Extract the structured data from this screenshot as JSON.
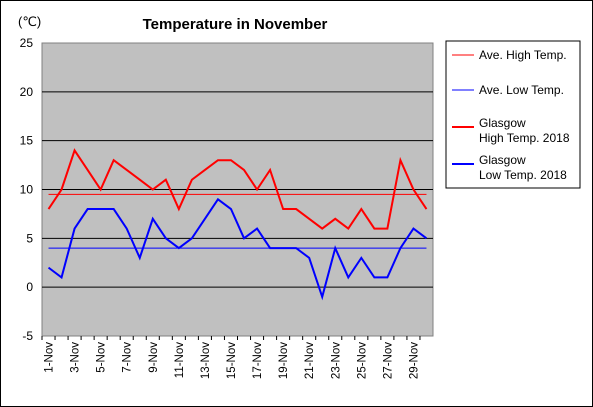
{
  "chart_data": {
    "type": "line",
    "title": "Temperature in November",
    "unit_label": "(℃)",
    "ylim": [
      -5,
      25
    ],
    "yticks": [
      -5,
      0,
      5,
      10,
      15,
      20,
      25
    ],
    "grid": true,
    "legend_position": "right",
    "colors": {
      "plot_bg": "#c0c0c0",
      "high": "#ff0000",
      "low": "#0000ff"
    },
    "categories": [
      "1-Nov",
      "2-Nov",
      "3-Nov",
      "4-Nov",
      "5-Nov",
      "6-Nov",
      "7-Nov",
      "8-Nov",
      "9-Nov",
      "10-Nov",
      "11-Nov",
      "12-Nov",
      "13-Nov",
      "14-Nov",
      "15-Nov",
      "16-Nov",
      "17-Nov",
      "18-Nov",
      "19-Nov",
      "20-Nov",
      "21-Nov",
      "22-Nov",
      "23-Nov",
      "24-Nov",
      "25-Nov",
      "26-Nov",
      "27-Nov",
      "28-Nov",
      "29-Nov",
      "30-Nov"
    ],
    "tick_labels": [
      "1-Nov",
      "3-Nov",
      "5-Nov",
      "7-Nov",
      "9-Nov",
      "11-Nov",
      "13-Nov",
      "15-Nov",
      "17-Nov",
      "19-Nov",
      "21-Nov",
      "23-Nov",
      "25-Nov",
      "27-Nov",
      "29-Nov"
    ],
    "series": [
      {
        "name": "Ave. High Temp.",
        "legend": [
          "Ave. High Temp."
        ],
        "style": "thin",
        "color": "#ff0000",
        "values": [
          9.5,
          9.5,
          9.5,
          9.5,
          9.5,
          9.5,
          9.5,
          9.5,
          9.5,
          9.5,
          9.5,
          9.5,
          9.5,
          9.5,
          9.5,
          9.5,
          9.5,
          9.5,
          9.5,
          9.5,
          9.5,
          9.5,
          9.5,
          9.5,
          9.5,
          9.5,
          9.5,
          9.5,
          9.5,
          9.5
        ]
      },
      {
        "name": "Ave. Low Temp.",
        "legend": [
          "Ave. Low Temp."
        ],
        "style": "thin",
        "color": "#0000ff",
        "values": [
          4,
          4,
          4,
          4,
          4,
          4,
          4,
          4,
          4,
          4,
          4,
          4,
          4,
          4,
          4,
          4,
          4,
          4,
          4,
          4,
          4,
          4,
          4,
          4,
          4,
          4,
          4,
          4,
          4,
          4
        ]
      },
      {
        "name": "Glasgow High Temp. 2018",
        "legend": [
          "Glasgow",
          "High Temp. 2018"
        ],
        "style": "thick",
        "color": "#ff0000",
        "values": [
          8,
          10,
          14,
          12,
          10,
          13,
          12,
          11,
          10,
          11,
          8,
          11,
          12,
          13,
          13,
          12,
          10,
          12,
          8,
          8,
          7,
          6,
          7,
          6,
          8,
          6,
          6,
          13,
          10,
          8
        ]
      },
      {
        "name": "Glasgow Low Temp. 2018",
        "legend": [
          "Glasgow",
          "Low Temp. 2018"
        ],
        "style": "thick",
        "color": "#0000ff",
        "values": [
          2,
          1,
          6,
          8,
          8,
          8,
          6,
          3,
          7,
          5,
          4,
          5,
          7,
          9,
          8,
          5,
          6,
          4,
          4,
          4,
          3,
          -1,
          4,
          1,
          3,
          1,
          1,
          4,
          6,
          5
        ]
      }
    ]
  }
}
